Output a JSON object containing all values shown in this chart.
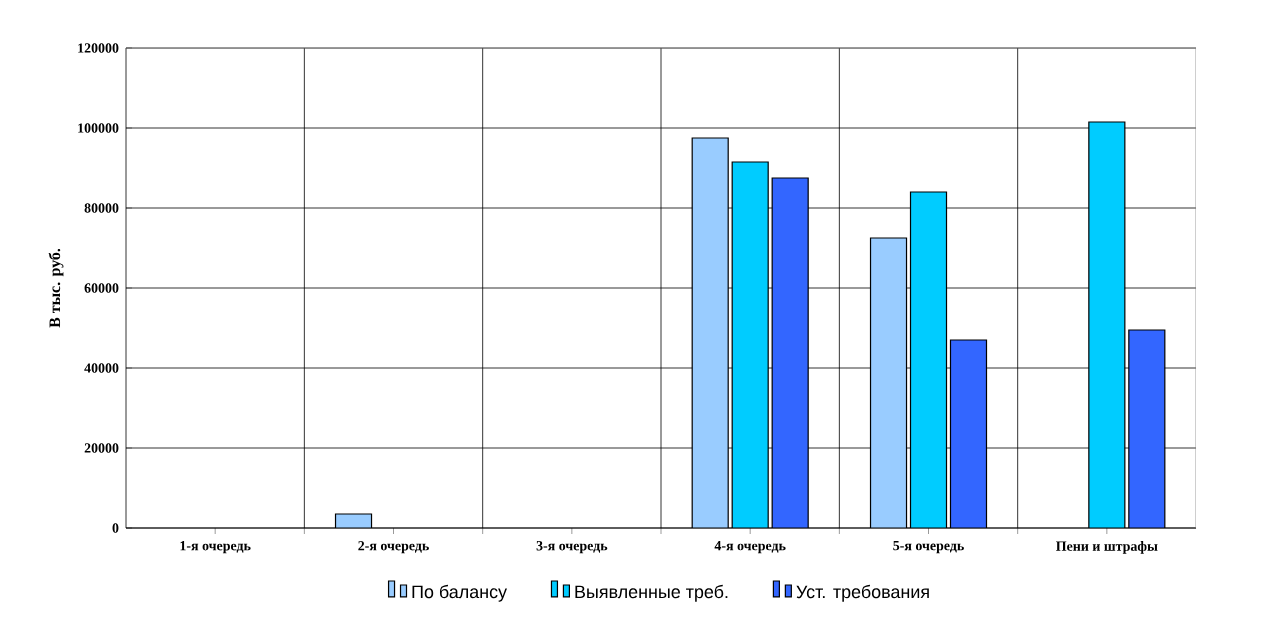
{
  "chart_data": {
    "type": "bar",
    "ylabel": "В тыс. руб.",
    "categories": [
      "1-я очередь",
      "2-я очередь",
      "3-я очередь",
      "4-я очередь",
      "5-я очередь",
      "Пени и штрафы"
    ],
    "series": [
      {
        "name": "По балансу",
        "color": "#99ccff",
        "values": [
          null,
          3500,
          null,
          97500,
          72500,
          null
        ]
      },
      {
        "name": "Выявленные треб.",
        "color": "#00ccff",
        "values": [
          null,
          null,
          null,
          91500,
          84000,
          101500
        ]
      },
      {
        "name": "Уст. требования",
        "color": "#3366ff",
        "values": [
          null,
          null,
          null,
          87500,
          47000,
          49500
        ]
      }
    ],
    "ylim": [
      0,
      120000
    ],
    "yticks": [
      0,
      20000,
      40000,
      60000,
      80000,
      100000,
      120000
    ],
    "grid": true,
    "legend": "bottom"
  }
}
